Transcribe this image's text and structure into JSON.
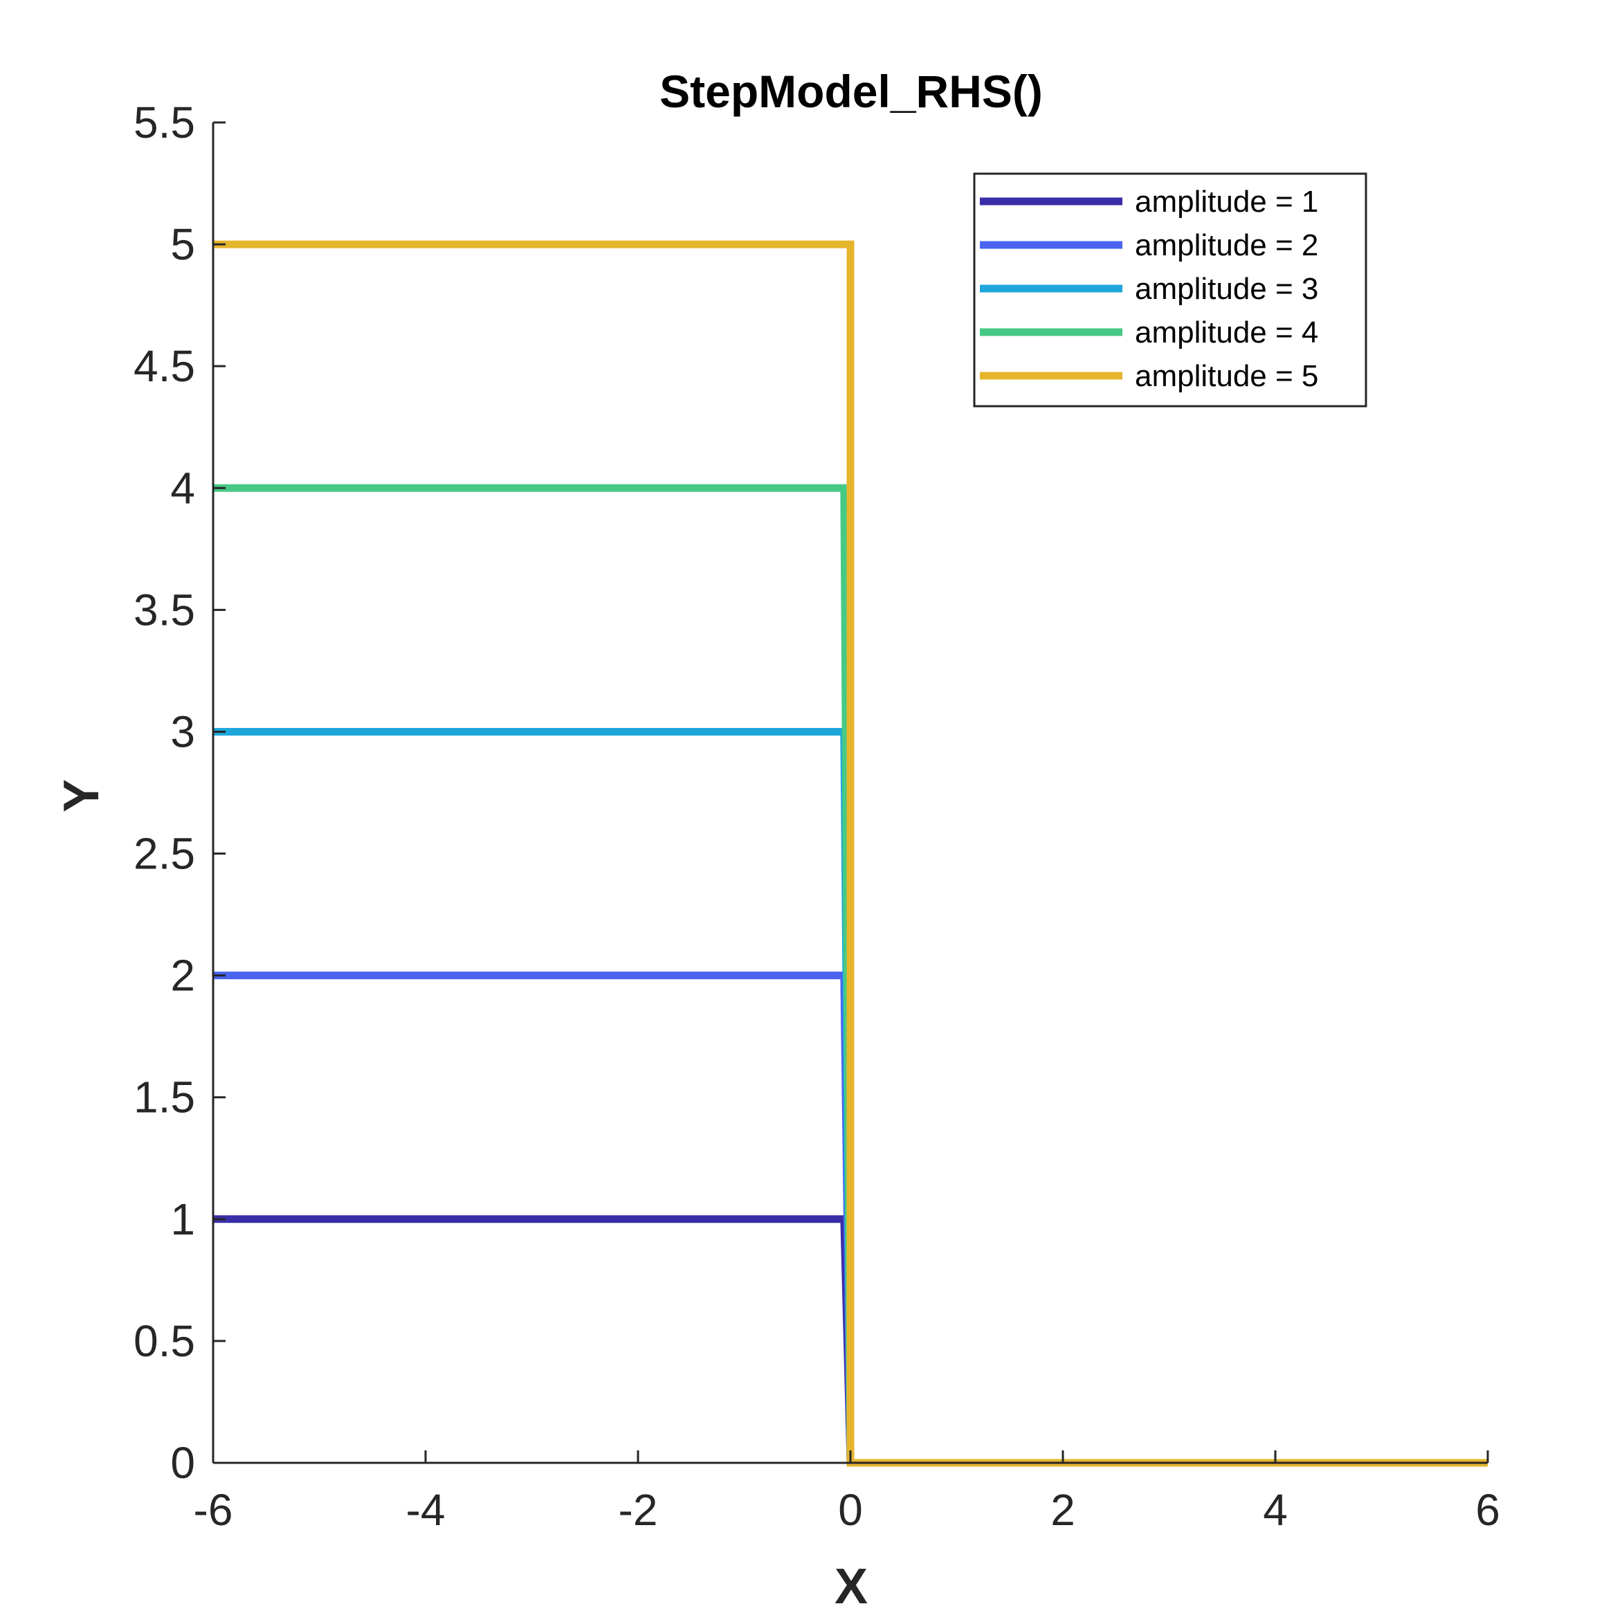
{
  "chart_data": {
    "type": "line",
    "title": "StepModel_RHS()",
    "xlabel": "X",
    "ylabel": "Y",
    "xlim": [
      -6,
      6
    ],
    "ylim": [
      0,
      5.5
    ],
    "xticks": [
      "-6",
      "-4",
      "-2",
      "0",
      "2",
      "4",
      "6"
    ],
    "yticks": [
      "0",
      "0.5",
      "1",
      "1.5",
      "2",
      "2.5",
      "3",
      "3.5",
      "4",
      "4.5",
      "5",
      "5.5"
    ],
    "legend_position": "top-right",
    "grid": false,
    "series": [
      {
        "name": "amplitude = 1",
        "color": "#3A2DA8",
        "x": [
          -6,
          -0.06,
          0,
          6
        ],
        "y": [
          1,
          1,
          0,
          0
        ]
      },
      {
        "name": "amplitude = 2",
        "color": "#4A64F0",
        "x": [
          -6,
          -0.06,
          0,
          6
        ],
        "y": [
          2,
          2,
          0,
          0
        ]
      },
      {
        "name": "amplitude = 3",
        "color": "#1EA6DB",
        "x": [
          -6,
          -0.06,
          0,
          6
        ],
        "y": [
          3,
          3,
          0,
          0
        ]
      },
      {
        "name": "amplitude = 4",
        "color": "#46C985",
        "x": [
          -6,
          -0.06,
          0,
          6
        ],
        "y": [
          4,
          4,
          0,
          0
        ]
      },
      {
        "name": "amplitude = 5",
        "color": "#E6B52E",
        "x": [
          -6,
          0,
          0,
          6
        ],
        "y": [
          5,
          5,
          0,
          0
        ]
      }
    ]
  }
}
